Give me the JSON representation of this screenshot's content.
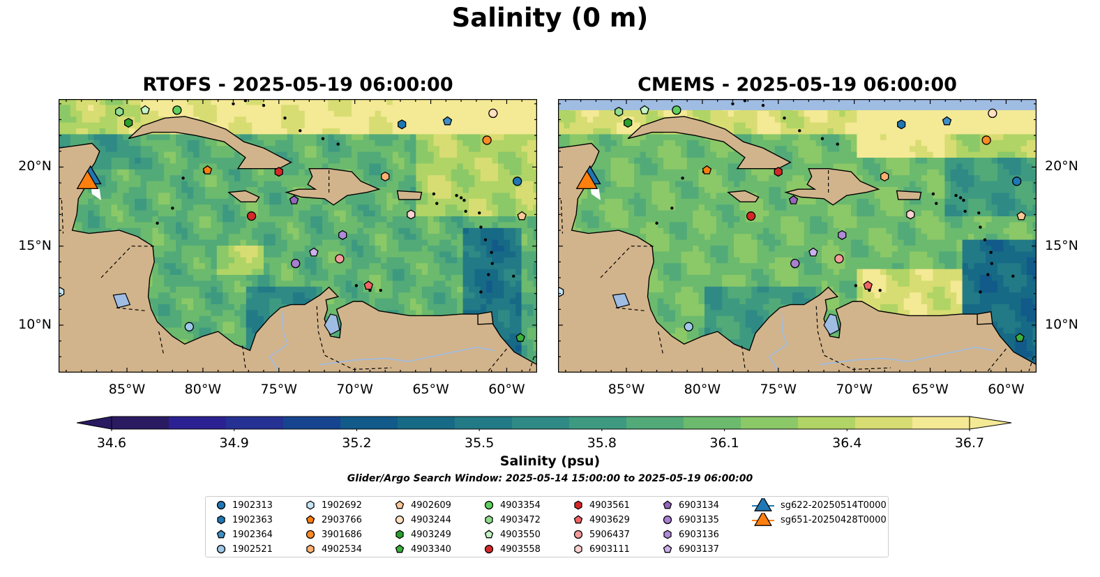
{
  "title": "Salinity (0 m)",
  "panels": [
    {
      "title": "RTOFS - 2025-05-19 06:00:00",
      "model": "rtofs"
    },
    {
      "title": "CMEMS - 2025-05-19 06:00:00",
      "model": "cmems"
    }
  ],
  "map": {
    "lon_range": [
      -89.5,
      -58.0
    ],
    "lat_range": [
      7.0,
      24.3
    ],
    "x_ticks": [
      -85,
      -80,
      -75,
      -70,
      -65,
      -60
    ],
    "x_tick_labels": [
      "85°W",
      "80°W",
      "75°W",
      "70°W",
      "65°W",
      "60°W"
    ],
    "y_ticks": [
      10,
      15,
      20
    ],
    "y_tick_labels": [
      "10°N",
      "15°N",
      "20°N"
    ],
    "land_color": "#d2b48c",
    "lake_color": "#9fbce3"
  },
  "colorbar": {
    "vmin": 34.6,
    "vmax": 36.7,
    "ticks": [
      34.6,
      34.9,
      35.2,
      35.5,
      35.8,
      36.1,
      36.4,
      36.7
    ],
    "tick_labels": [
      "34.6",
      "34.9",
      "35.2",
      "35.5",
      "35.8",
      "36.1",
      "36.4",
      "36.7"
    ],
    "label": "Salinity (psu)",
    "colormap": "haline",
    "extend": "both"
  },
  "search_window": "Glider/Argo Search Window: 2025-05-14 15:00:00 to 2025-05-19 06:00:00",
  "legend": [
    {
      "id": "1902313",
      "marker": "circle",
      "color": "#1f77b4",
      "lon": -59.3,
      "lat": 19.1
    },
    {
      "id": "1902363",
      "marker": "hexagon",
      "color": "#1f77b4",
      "lon": -66.9,
      "lat": 22.7
    },
    {
      "id": "1902364",
      "marker": "pentagon",
      "color": "#3f8fc6",
      "lon": -63.9,
      "lat": 22.9
    },
    {
      "id": "1902521",
      "marker": "circle",
      "color": "#9ec9ea",
      "lon": -80.9,
      "lat": 9.9
    },
    {
      "id": "1902692",
      "marker": "hexagon",
      "color": "#c6e6f7",
      "lon": -89.4,
      "lat": 12.1
    },
    {
      "id": "2903766",
      "marker": "pentagon",
      "color": "#ff7f0e",
      "lon": -79.7,
      "lat": 19.8
    },
    {
      "id": "3901686",
      "marker": "circle",
      "color": "#ff8b26",
      "lon": -61.3,
      "lat": 21.7
    },
    {
      "id": "4902534",
      "marker": "hexagon",
      "color": "#ffb070",
      "lon": -68.0,
      "lat": 19.4
    },
    {
      "id": "4902609",
      "marker": "pentagon",
      "color": "#ffc896",
      "lon": -59.0,
      "lat": 16.9
    },
    {
      "id": "4903244",
      "marker": "circle",
      "color": "#ffe0c2",
      "lon": -60.9,
      "lat": 23.4
    },
    {
      "id": "4903249",
      "marker": "hexagon",
      "color": "#2ca02c",
      "lon": -84.9,
      "lat": 22.8
    },
    {
      "id": "4903340",
      "marker": "pentagon",
      "color": "#3cb03c",
      "lon": -59.1,
      "lat": 9.2
    },
    {
      "id": "4903354",
      "marker": "circle",
      "color": "#5fcf5f",
      "lon": -81.7,
      "lat": 23.6
    },
    {
      "id": "4903472",
      "marker": "hexagon",
      "color": "#8fdc8f",
      "lon": -85.5,
      "lat": 23.5
    },
    {
      "id": "4903550",
      "marker": "pentagon",
      "color": "#c4f3c4",
      "lon": -83.8,
      "lat": 23.6
    },
    {
      "id": "4903558",
      "marker": "circle",
      "color": "#d62728",
      "lon": -76.8,
      "lat": 16.9
    },
    {
      "id": "4903561",
      "marker": "hexagon",
      "color": "#d62728",
      "lon": -75.0,
      "lat": 19.7
    },
    {
      "id": "4903629",
      "marker": "pentagon",
      "color": "#f06566",
      "lon": -69.1,
      "lat": 12.5
    },
    {
      "id": "5906437",
      "marker": "circle",
      "color": "#f59b9b",
      "lon": -71.0,
      "lat": 14.2
    },
    {
      "id": "6903111",
      "marker": "hexagon",
      "color": "#ffd1d1",
      "lon": -66.3,
      "lat": 17.0
    },
    {
      "id": "6903134",
      "marker": "pentagon",
      "color": "#9467bd",
      "lon": -74.0,
      "lat": 17.9
    },
    {
      "id": "6903135",
      "marker": "circle",
      "color": "#a87fd1",
      "lon": -73.9,
      "lat": 13.9
    },
    {
      "id": "6903136",
      "marker": "hexagon",
      "color": "#b08ad9",
      "lon": -70.8,
      "lat": 15.7
    },
    {
      "id": "6903137",
      "marker": "pentagon",
      "color": "#ccb0ec",
      "lon": -72.7,
      "lat": 14.6
    },
    {
      "id": "sg622-20250514T0000",
      "marker": "triangle",
      "color": "#1f77b4",
      "lon": -87.4,
      "lat": 19.5
    },
    {
      "id": "sg651-20250428T0000",
      "marker": "triangle",
      "color": "#ff7f0e",
      "lon": -87.6,
      "lat": 19.2
    }
  ]
}
